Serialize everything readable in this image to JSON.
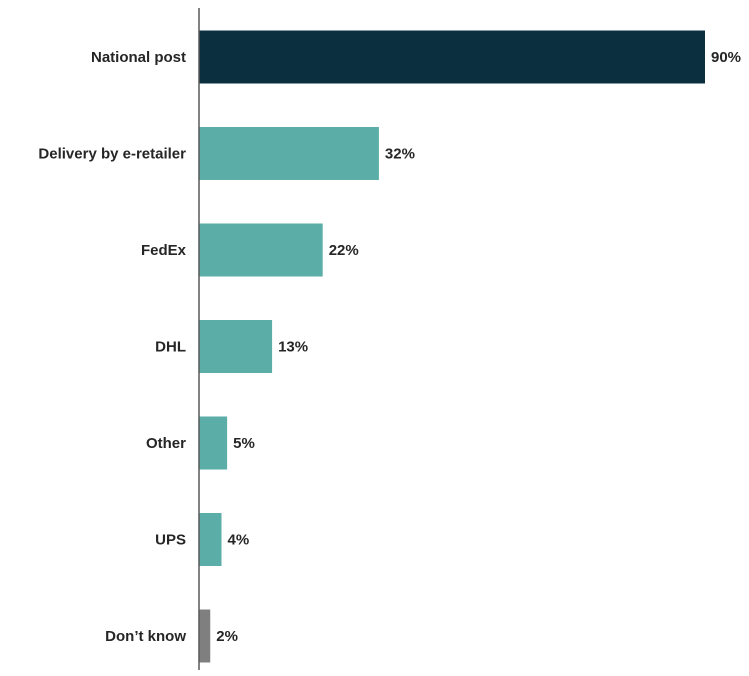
{
  "chart_data": {
    "type": "bar",
    "orientation": "horizontal",
    "categories": [
      "National post",
      "Delivery by e-retailer",
      "FedEx",
      "DHL",
      "Other",
      "UPS",
      "Don’t know"
    ],
    "values": [
      90,
      32,
      22,
      13,
      5,
      4,
      2
    ],
    "value_labels": [
      "90%",
      "32%",
      "22%",
      "13%",
      "5%",
      "4%",
      "2%"
    ],
    "unit": "%",
    "xlim": [
      0,
      90
    ],
    "grid": false,
    "legend": "none",
    "bar_colors": [
      "#0b2f3f",
      "#5aaea7",
      "#5aaea7",
      "#5aaea7",
      "#5aaea7",
      "#5aaea7",
      "#7f7f7f"
    ],
    "axis_color": "#595959"
  }
}
